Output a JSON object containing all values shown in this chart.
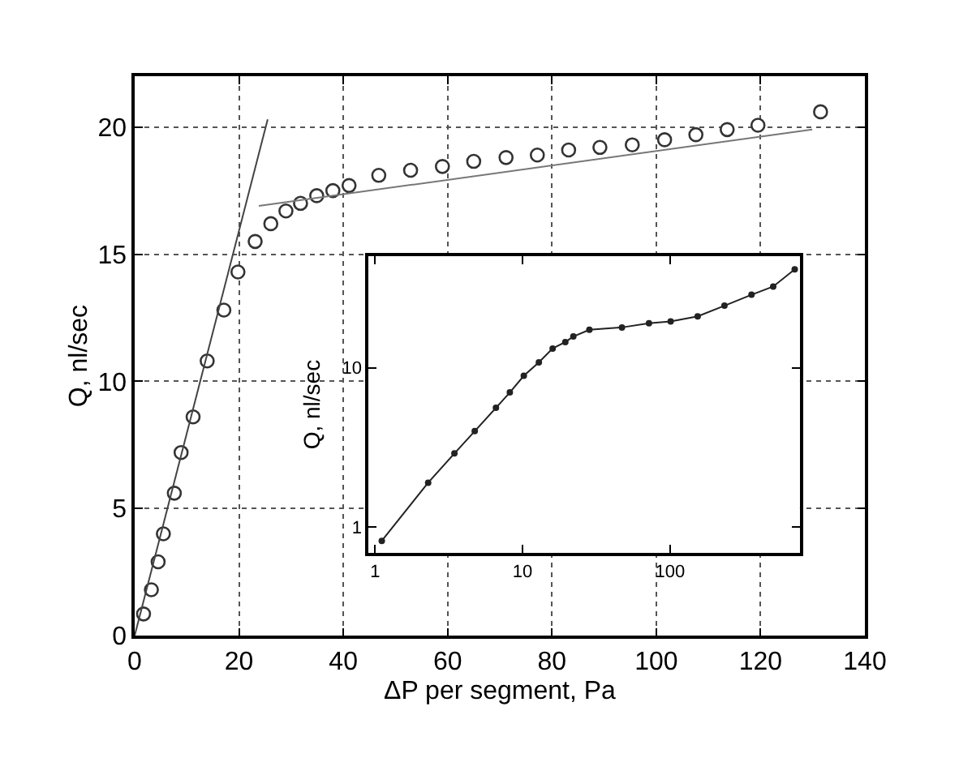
{
  "chart_data": [
    {
      "type": "scatter",
      "xlabel": "ΔP per segment, Pa",
      "ylabel": "Q, nl/sec",
      "xlim": [
        0,
        140
      ],
      "ylim": [
        0,
        22
      ],
      "xticks": [
        0,
        20,
        40,
        60,
        80,
        100,
        120,
        140
      ],
      "yticks": [
        0,
        5,
        10,
        15,
        20
      ],
      "grid": true,
      "series": [
        {
          "type": "scatter",
          "marker": "circle",
          "color": "#333333",
          "x": [
            1.7,
            3.2,
            4.5,
            5.5,
            7.6,
            8.9,
            11.2,
            13.9,
            17.1,
            19.8,
            23.1,
            26.1,
            29.0,
            31.8,
            34.9,
            38.0,
            41.1,
            46.8,
            52.9,
            59.0,
            65.0,
            71.2,
            77.2,
            83.2,
            89.2,
            95.4,
            101.6,
            107.6,
            113.6,
            119.5,
            131.5
          ],
          "values": [
            0.85,
            1.8,
            2.9,
            4.0,
            5.6,
            7.2,
            8.6,
            10.8,
            12.8,
            14.3,
            15.5,
            16.2,
            16.7,
            17.0,
            17.3,
            17.5,
            17.7,
            18.1,
            18.3,
            18.45,
            18.65,
            18.8,
            18.9,
            19.1,
            19.2,
            19.3,
            19.5,
            19.7,
            19.9,
            20.07,
            20.6
          ]
        },
        {
          "type": "line",
          "color": "#444444",
          "x": [
            0,
            25.5
          ],
          "values": [
            0,
            20.3
          ]
        },
        {
          "type": "line",
          "color": "#777777",
          "x": [
            23.8,
            129.9
          ],
          "values": [
            16.9,
            19.9
          ]
        }
      ]
    },
    {
      "type": "line",
      "log": "xy",
      "ylabel": "Q, nl/sec",
      "xlim": [
        0.9,
        760
      ],
      "ylim": [
        0.69,
        50
      ],
      "xticks": [
        1,
        10,
        100
      ],
      "yticks": [
        1,
        10
      ],
      "marker": "circle",
      "series": [
        {
          "color": "#222222",
          "x": [
            1.11,
            2.29,
            3.45,
            4.74,
            6.6,
            8.2,
            10.2,
            12.9,
            16.0,
            19.5,
            22.1,
            28.4,
            47.2,
            72,
            101,
            154,
            234,
            357,
            501,
            701
          ],
          "values": [
            0.82,
            1.9,
            2.9,
            4.0,
            5.6,
            7.0,
            8.9,
            10.8,
            13.2,
            14.5,
            15.7,
            17.3,
            17.9,
            19.0,
            19.5,
            21.0,
            24.5,
            28.7,
            32.3,
            41.4
          ]
        }
      ]
    }
  ]
}
